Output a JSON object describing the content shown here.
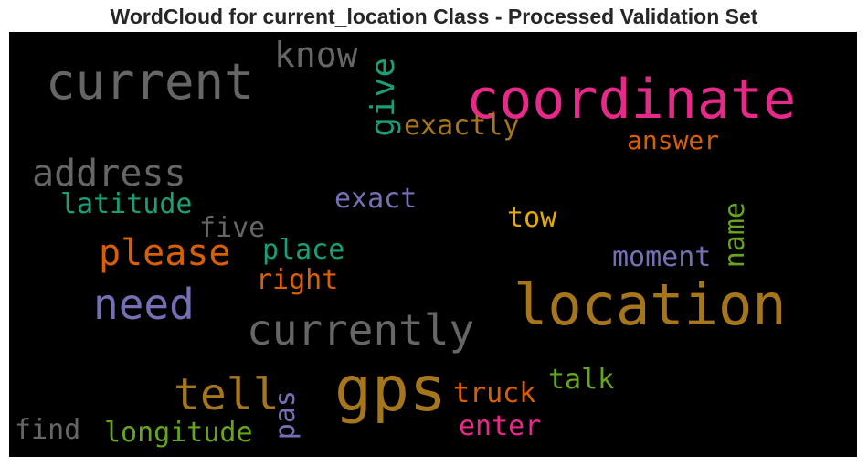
{
  "title": "WordCloud for current_location Class - Processed Validation Set",
  "words": {
    "coordinate": "coordinate",
    "current": "current",
    "know": "know",
    "give": "give",
    "exactly": "exactly",
    "answer": "answer",
    "address": "address",
    "latitude": "latitude",
    "exact": "exact",
    "five": "five",
    "tow": "tow",
    "name": "name",
    "please": "please",
    "place": "place",
    "moment": "moment",
    "right": "right",
    "need": "need",
    "location": "location",
    "currently": "currently",
    "tell": "tell",
    "gps": "gps",
    "pas": "pas",
    "truck": "truck",
    "talk": "talk",
    "enter": "enter",
    "find": "find",
    "longitude": "longitude"
  },
  "colors": {
    "gray": "#666666",
    "pink": "#e7298a",
    "teal": "#1b9e77",
    "orange": "#d95f02",
    "purple": "#7570b3",
    "gold": "#a6761d",
    "yellow": "#e6ab02",
    "green": "#66a61e",
    "background": "#000000"
  }
}
